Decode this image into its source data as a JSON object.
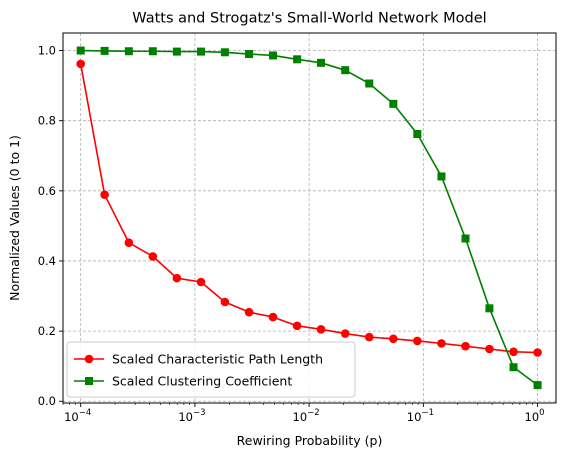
{
  "chart_data": {
    "type": "line",
    "title": "Watts and Strogatz's Small-World Network Model",
    "xlabel": "Rewiring Probability (p)",
    "ylabel": "Normalized Values (0 to 1)",
    "xscale": "log",
    "xlim": [
      7e-05,
      1.45
    ],
    "ylim": [
      -0.005,
      1.05
    ],
    "grid": true,
    "legend_position": "lower-left",
    "x": [
      0.0001,
      0.000162,
      0.000264,
      0.000428,
      0.000695,
      0.00113,
      0.00183,
      0.00298,
      0.00483,
      0.00785,
      0.0127,
      0.0207,
      0.0336,
      0.0546,
      0.0886,
      0.144,
      0.234,
      0.379,
      0.616,
      1.0
    ],
    "x_tick_values": [
      0.0001,
      0.001,
      0.01,
      0.1,
      1
    ],
    "x_tick_labels": [
      {
        "base": "10",
        "exp": "−4"
      },
      {
        "base": "10",
        "exp": "−3"
      },
      {
        "base": "10",
        "exp": "−2"
      },
      {
        "base": "10",
        "exp": "−1"
      },
      {
        "base": "10",
        "exp": "0"
      }
    ],
    "y_tick_values": [
      0.0,
      0.2,
      0.4,
      0.6,
      0.8,
      1.0
    ],
    "y_tick_labels": [
      "0.0",
      "0.2",
      "0.4",
      "0.6",
      "0.8",
      "1.0"
    ],
    "series": [
      {
        "name": "Scaled Characteristic Path Length",
        "color": "#ff0000",
        "marker": "circle",
        "values": [
          0.962,
          0.589,
          0.452,
          0.413,
          0.351,
          0.34,
          0.283,
          0.254,
          0.24,
          0.215,
          0.205,
          0.193,
          0.183,
          0.178,
          0.172,
          0.165,
          0.157,
          0.149,
          0.141,
          0.139
        ]
      },
      {
        "name": "Scaled Clustering Coefficient",
        "color": "#008000",
        "marker": "square",
        "values": [
          1.0,
          0.999,
          0.998,
          0.998,
          0.997,
          0.997,
          0.995,
          0.99,
          0.986,
          0.975,
          0.965,
          0.944,
          0.906,
          0.848,
          0.762,
          0.641,
          0.464,
          0.265,
          0.097,
          0.046
        ]
      }
    ]
  }
}
